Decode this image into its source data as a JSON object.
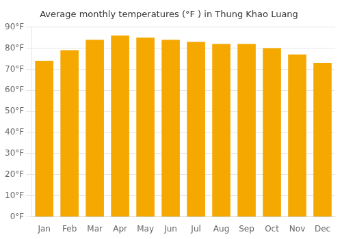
{
  "chart_data": {
    "type": "bar",
    "title": "Average monthly temperatures (°F ) in Thung Khao Luang",
    "categories": [
      "Jan",
      "Feb",
      "Mar",
      "Apr",
      "May",
      "Jun",
      "Jul",
      "Aug",
      "Sep",
      "Oct",
      "Nov",
      "Dec"
    ],
    "values": [
      74,
      79,
      84,
      86,
      85,
      84,
      83,
      82,
      82,
      80,
      77,
      73
    ],
    "color": "#F5A800",
    "ylim": [
      0,
      90
    ],
    "yticks": [
      {
        "value": 0,
        "label": "0°F"
      },
      {
        "value": 10,
        "label": "10°F"
      },
      {
        "value": 20,
        "label": "20°F"
      },
      {
        "value": 30,
        "label": "30°F"
      },
      {
        "value": 40,
        "label": "40°F"
      },
      {
        "value": 50,
        "label": "50°F"
      },
      {
        "value": 60,
        "label": "60°F"
      },
      {
        "value": 70,
        "label": "70°F"
      },
      {
        "value": 80,
        "label": "80°F"
      },
      {
        "value": 90,
        "label": "90°F"
      }
    ],
    "grid": true
  }
}
